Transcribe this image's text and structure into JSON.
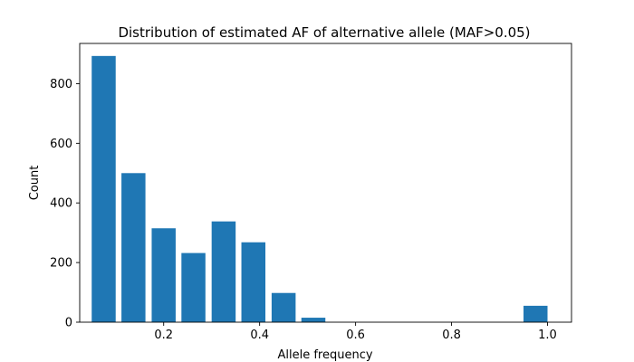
{
  "chart_data": {
    "type": "bar",
    "title": "Distribution of estimated AF of alternative allele (MAF>0.05)",
    "xlabel": "Allele frequency",
    "ylabel": "Count",
    "xlim": [
      0.025,
      1.05
    ],
    "ylim": [
      0,
      935
    ],
    "x_ticks": [
      0.2,
      0.4,
      0.6,
      0.8,
      1.0
    ],
    "x_tick_labels": [
      "0.2",
      "0.4",
      "0.6",
      "0.8",
      "1.0"
    ],
    "y_ticks": [
      0,
      200,
      400,
      600,
      800
    ],
    "y_tick_labels": [
      "0",
      "200",
      "400",
      "600",
      "800"
    ],
    "bar_width": 0.05,
    "x": [
      0.075,
      0.137,
      0.2,
      0.262,
      0.325,
      0.387,
      0.45,
      0.512,
      0.575,
      0.637,
      0.7,
      0.762,
      0.825,
      0.887,
      0.95,
      0.975
    ],
    "values": [
      893,
      500,
      315,
      232,
      338,
      268,
      98,
      15,
      0,
      0,
      0,
      0,
      0,
      0,
      0,
      55
    ],
    "bar_color": "#1f77b4",
    "grid": false,
    "legend": "none"
  }
}
